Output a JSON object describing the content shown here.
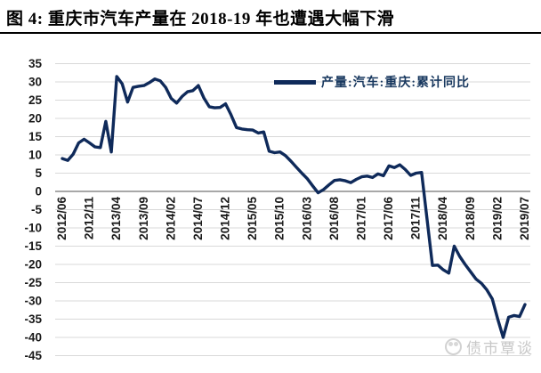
{
  "title": "图 4:  重庆市汽车产量在 2018-19 年也遭遇大幅下滑",
  "watermark": {
    "text": "债市覃谈",
    "icon": "panda-logo"
  },
  "colors": {
    "series_line": "#0f2a5a",
    "grid_line": "#d9d9d9",
    "zero_axis": "#8c8c8c",
    "axis_text": "#1a1a1a",
    "legend_text": "#17375e",
    "title_text": "#000000",
    "watermark_text": "#c7c7c7"
  },
  "chart_data": {
    "type": "line",
    "title": "图 4:  重庆市汽车产量在 2018-19 年也遭遇大幅下滑",
    "legend": [
      "产量:汽车:重庆:累计同比"
    ],
    "legend_position": "top-inside",
    "grid": "horizontal",
    "ylim": [
      -45,
      35
    ],
    "y_ticks": [
      35,
      30,
      25,
      20,
      15,
      10,
      5,
      0,
      -5,
      -10,
      -15,
      -20,
      -25,
      -30,
      -35,
      -40,
      -45
    ],
    "x_tick_labels": [
      "2012/06",
      "2012/11",
      "2013/04",
      "2013/09",
      "2014/02",
      "2014/07",
      "2014/12",
      "2015/05",
      "2015/10",
      "2016/03",
      "2016/08",
      "2017/01",
      "2017/06",
      "2017/11",
      "2018/04",
      "2018/09",
      "2019/02",
      "2019/07"
    ],
    "x_tick_every": 5,
    "x": [
      "2012/06",
      "2012/07",
      "2012/08",
      "2012/09",
      "2012/10",
      "2012/11",
      "2012/12",
      "2013/01",
      "2013/02",
      "2013/03",
      "2013/04",
      "2013/05",
      "2013/06",
      "2013/07",
      "2013/08",
      "2013/09",
      "2013/10",
      "2013/11",
      "2013/12",
      "2014/01",
      "2014/02",
      "2014/03",
      "2014/04",
      "2014/05",
      "2014/06",
      "2014/07",
      "2014/08",
      "2014/09",
      "2014/10",
      "2014/11",
      "2014/12",
      "2015/01",
      "2015/02",
      "2015/03",
      "2015/04",
      "2015/05",
      "2015/06",
      "2015/07",
      "2015/08",
      "2015/09",
      "2015/10",
      "2015/11",
      "2015/12",
      "2016/01",
      "2016/02",
      "2016/03",
      "2016/04",
      "2016/05",
      "2016/06",
      "2016/07",
      "2016/08",
      "2016/09",
      "2016/10",
      "2016/11",
      "2016/12",
      "2017/01",
      "2017/02",
      "2017/03",
      "2017/04",
      "2017/05",
      "2017/06",
      "2017/07",
      "2017/08",
      "2017/09",
      "2017/10",
      "2017/11",
      "2017/12",
      "2018/01",
      "2018/02",
      "2018/03",
      "2018/04",
      "2018/05",
      "2018/06",
      "2018/07",
      "2018/08",
      "2018/09",
      "2018/10",
      "2018/11",
      "2018/12",
      "2019/01",
      "2019/02",
      "2019/03",
      "2019/04",
      "2019/05",
      "2019/06",
      "2019/07"
    ],
    "series": [
      {
        "name": "产量:汽车:重庆:累计同比",
        "values": [
          9.0,
          8.5,
          10.2,
          13.3,
          14.3,
          13.3,
          12.2,
          12.0,
          19.2,
          10.8,
          31.5,
          29.5,
          24.5,
          28.5,
          28.8,
          29.0,
          29.8,
          30.8,
          30.3,
          28.5,
          25.5,
          24.2,
          26.0,
          27.3,
          27.6,
          29.0,
          25.6,
          23.2,
          22.9,
          23.0,
          24.0,
          21.0,
          17.5,
          17.1,
          16.9,
          16.8,
          16.0,
          16.3,
          11.0,
          10.6,
          10.8,
          9.8,
          8.3,
          6.6,
          5.0,
          3.5,
          1.5,
          -0.4,
          0.5,
          1.8,
          3.0,
          3.2,
          2.9,
          2.4,
          3.3,
          4.0,
          4.2,
          3.8,
          4.8,
          4.3,
          7.0,
          6.5,
          7.3,
          6.0,
          4.4,
          5.0,
          5.2,
          -7.5,
          -20.3,
          -20.2,
          -21.5,
          -22.4,
          -15.0,
          -17.8,
          -20.0,
          -22.0,
          -24.0,
          -25.2,
          -27.0,
          -29.5,
          -35.0,
          -40.0,
          -34.5,
          -34.0,
          -34.3,
          -31.0
        ]
      }
    ]
  }
}
